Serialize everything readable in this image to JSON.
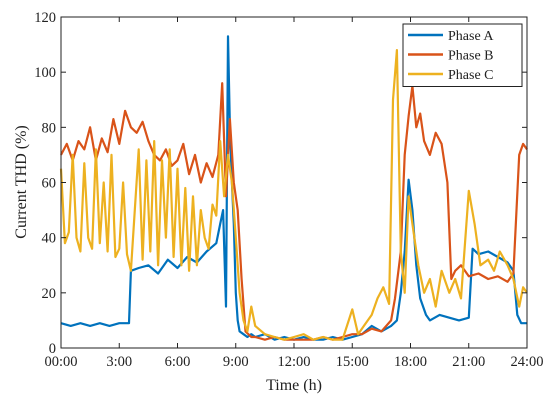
{
  "chart_data": {
    "type": "line",
    "title": "",
    "xlabel": "Time (h)",
    "ylabel": "Current THD (%)",
    "x_unit": "hours",
    "xlim": [
      0,
      24
    ],
    "ylim": [
      0,
      120
    ],
    "x_ticks": [
      0,
      3,
      6,
      9,
      12,
      15,
      18,
      21,
      24
    ],
    "x_tick_labels": [
      "00:00",
      "3:00",
      "6:00",
      "9:00",
      "12:00",
      "15:00",
      "18:00",
      "21:00",
      "24:00"
    ],
    "y_ticks": [
      0,
      20,
      40,
      60,
      80,
      100,
      120
    ],
    "y_tick_labels": [
      "0",
      "20",
      "40",
      "60",
      "80",
      "100",
      "120"
    ],
    "grid": false,
    "legend_position": "top-right",
    "series": [
      {
        "name": "Phase A",
        "color": "#0072BD",
        "x": [
          0,
          0.5,
          1,
          1.5,
          2,
          2.5,
          3,
          3.5,
          3.6,
          4,
          4.5,
          5,
          5.5,
          6,
          6.5,
          7,
          7.5,
          8,
          8.2,
          8.35,
          8.5,
          8.6,
          8.7,
          8.8,
          8.9,
          9.0,
          9.1,
          9.2,
          9.4,
          9.6,
          9.8,
          10,
          10.5,
          11,
          11.5,
          12,
          12.5,
          13,
          13.5,
          14,
          14.5,
          15,
          15.5,
          16,
          16.5,
          17,
          17.3,
          17.5,
          17.7,
          17.9,
          18.1,
          18.3,
          18.5,
          18.8,
          19,
          19.5,
          20,
          20.5,
          21,
          21.2,
          21.5,
          22,
          22.5,
          23,
          23.3,
          23.5,
          23.7,
          24
        ],
        "values": [
          9,
          8,
          9,
          8,
          9,
          8,
          9,
          9,
          28,
          29,
          30,
          27,
          32,
          29,
          33,
          31,
          35,
          38,
          45,
          50,
          15,
          113,
          80,
          60,
          45,
          20,
          10,
          6,
          5,
          4,
          5,
          4,
          5,
          3,
          4,
          3,
          4,
          3,
          3,
          4,
          3,
          4,
          5,
          8,
          6,
          8,
          10,
          20,
          35,
          61,
          50,
          30,
          18,
          12,
          10,
          12,
          11,
          10,
          11,
          36,
          34,
          35,
          33,
          31,
          28,
          12,
          9,
          9
        ]
      },
      {
        "name": "Phase B",
        "color": "#D95319",
        "x": [
          0,
          0.3,
          0.6,
          0.9,
          1.2,
          1.5,
          1.8,
          2.1,
          2.4,
          2.7,
          3.0,
          3.3,
          3.6,
          3.9,
          4.2,
          4.5,
          4.8,
          5.1,
          5.4,
          5.7,
          6.0,
          6.3,
          6.6,
          6.9,
          7.2,
          7.5,
          7.8,
          8.1,
          8.3,
          8.5,
          8.7,
          8.9,
          9.1,
          9.3,
          9.5,
          9.8,
          10,
          10.5,
          11,
          11.5,
          12,
          12.5,
          13,
          13.5,
          14,
          14.5,
          15,
          15.5,
          16,
          16.5,
          17,
          17.2,
          17.5,
          17.7,
          17.9,
          18.1,
          18.3,
          18.5,
          18.7,
          19,
          19.3,
          19.6,
          19.9,
          20.1,
          20.3,
          20.6,
          21,
          21.5,
          22,
          22.5,
          23,
          23.3,
          23.6,
          23.8,
          24
        ],
        "values": [
          70,
          74,
          68,
          75,
          72,
          80,
          68,
          76,
          71,
          83,
          74,
          86,
          80,
          78,
          82,
          75,
          70,
          68,
          72,
          66,
          68,
          74,
          63,
          70,
          60,
          67,
          62,
          70,
          96,
          55,
          83,
          60,
          50,
          25,
          6,
          4,
          4,
          3,
          4,
          3,
          3,
          3,
          3,
          4,
          3,
          4,
          5,
          5,
          7,
          6,
          10,
          18,
          35,
          70,
          84,
          95,
          80,
          85,
          75,
          70,
          78,
          74,
          60,
          25,
          28,
          30,
          26,
          27,
          25,
          26,
          24,
          27,
          70,
          74,
          72
        ]
      },
      {
        "name": "Phase C",
        "color": "#EDB120",
        "x": [
          0,
          0.2,
          0.4,
          0.6,
          0.8,
          1.0,
          1.2,
          1.4,
          1.6,
          1.8,
          2.0,
          2.2,
          2.4,
          2.6,
          2.8,
          3.0,
          3.2,
          3.4,
          3.6,
          3.8,
          4.0,
          4.2,
          4.4,
          4.6,
          4.8,
          5.0,
          5.2,
          5.4,
          5.6,
          5.8,
          6.0,
          6.2,
          6.4,
          6.6,
          6.8,
          7.0,
          7.2,
          7.4,
          7.6,
          7.8,
          8.0,
          8.2,
          8.4,
          8.6,
          8.8,
          9.0,
          9.2,
          9.4,
          9.6,
          9.8,
          10,
          10.5,
          11,
          11.5,
          12,
          12.5,
          13,
          13.5,
          14,
          14.5,
          15,
          15.3,
          15.6,
          16,
          16.3,
          16.6,
          16.9,
          17.1,
          17.3,
          17.5,
          17.7,
          17.9,
          18.1,
          18.4,
          18.7,
          19,
          19.3,
          19.6,
          20,
          20.3,
          20.6,
          21,
          21.3,
          21.6,
          22,
          22.3,
          22.6,
          23,
          23.3,
          23.6,
          23.8,
          24
        ],
        "values": [
          65,
          38,
          42,
          70,
          40,
          35,
          67,
          40,
          36,
          72,
          38,
          60,
          35,
          70,
          33,
          36,
          60,
          34,
          28,
          50,
          72,
          32,
          68,
          35,
          75,
          30,
          68,
          40,
          72,
          33,
          65,
          30,
          58,
          28,
          55,
          30,
          50,
          40,
          36,
          52,
          48,
          75,
          55,
          70,
          60,
          40,
          20,
          10,
          6,
          15,
          8,
          5,
          4,
          3,
          4,
          5,
          3,
          4,
          3,
          3,
          14,
          5,
          8,
          12,
          18,
          22,
          16,
          90,
          108,
          35,
          20,
          55,
          45,
          30,
          20,
          25,
          15,
          28,
          20,
          25,
          18,
          57,
          45,
          30,
          32,
          28,
          35,
          30,
          25,
          15,
          22,
          20
        ]
      }
    ]
  }
}
